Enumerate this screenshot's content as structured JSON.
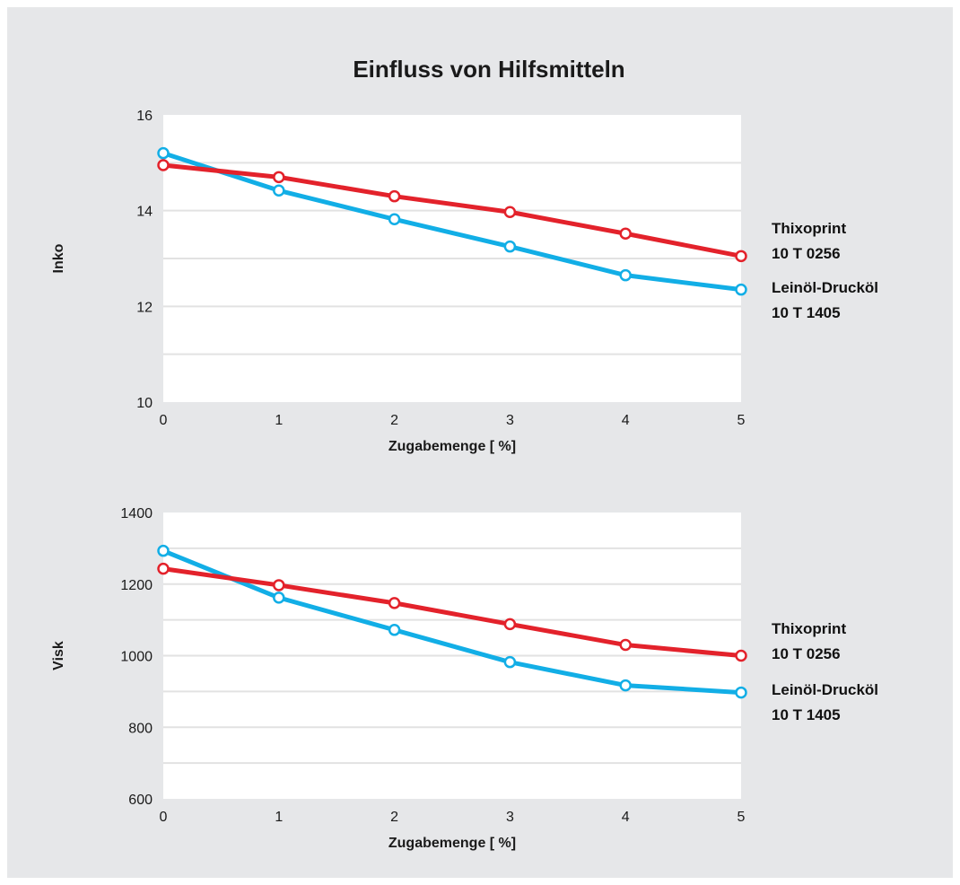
{
  "title": "Einfluss von Hilfsmitteln",
  "colors": {
    "background": "#e6e7e9",
    "plot": "#ffffff",
    "grid": "#e2e2e2",
    "thixoprint": "#e3222b",
    "leinoel": "#12aee6"
  },
  "chart_data": [
    {
      "type": "line",
      "ylabel": "Inko",
      "xlabel": "Zugabemenge [ %]",
      "x": [
        0,
        1,
        2,
        3,
        4,
        5
      ],
      "xticks": [
        "0",
        "1",
        "2",
        "3",
        "4",
        "5"
      ],
      "ylim": [
        10,
        16
      ],
      "yticks": [
        "10",
        "12",
        "14",
        "16"
      ],
      "grid": true,
      "series": [
        {
          "name": "Thixoprint",
          "code": "10 T 0256",
          "color": "#e3222b",
          "values": [
            14.95,
            14.7,
            14.3,
            13.97,
            13.52,
            13.05
          ]
        },
        {
          "name": "Leinöl-Drucköl",
          "code": "10 T 1405",
          "color": "#12aee6",
          "values": [
            15.2,
            14.42,
            13.82,
            13.25,
            12.65,
            12.35
          ]
        }
      ]
    },
    {
      "type": "line",
      "ylabel": "Visk",
      "xlabel": "Zugabemenge [ %]",
      "x": [
        0,
        1,
        2,
        3,
        4,
        5
      ],
      "xticks": [
        "0",
        "1",
        "2",
        "3",
        "4",
        "5"
      ],
      "ylim": [
        600,
        1400
      ],
      "yticks": [
        "600",
        "800",
        "1000",
        "1200",
        "1400"
      ],
      "grid": true,
      "series": [
        {
          "name": "Thixoprint",
          "code": "10 T 0256",
          "color": "#e3222b",
          "values": [
            1243,
            1197,
            1147,
            1088,
            1030,
            1000
          ]
        },
        {
          "name": "Leinöl-Drucköl",
          "code": "10 T 1405",
          "color": "#12aee6",
          "values": [
            1293,
            1162,
            1072,
            982,
            917,
            897
          ]
        }
      ]
    }
  ]
}
